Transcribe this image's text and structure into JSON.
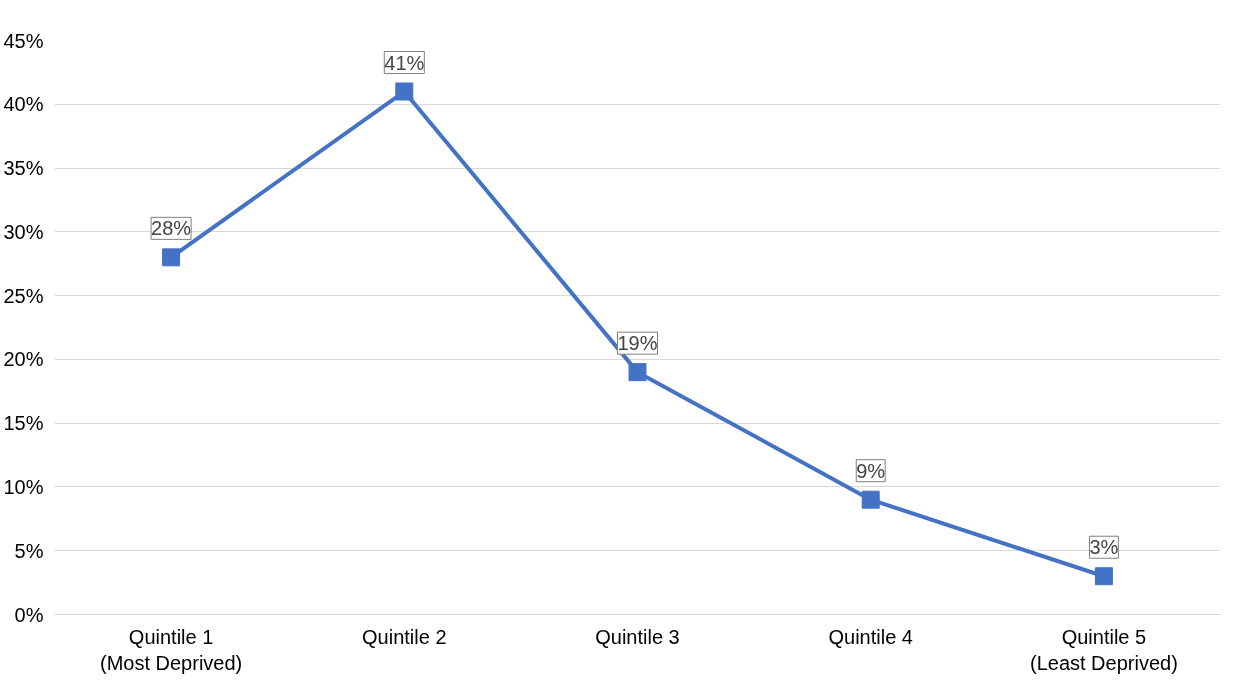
{
  "chart_data": {
    "type": "line",
    "categories": [
      "Quintile 1\n(Most Deprived)",
      "Quintile 2",
      "Quintile 3",
      "Quintile 4",
      "Quintile 5\n(Least Deprived)"
    ],
    "values": [
      28,
      41,
      19,
      9,
      3
    ],
    "value_labels": [
      "28%",
      "41%",
      "19%",
      "9%",
      "3%"
    ],
    "color": "#4472c4",
    "ylim": [
      0,
      45
    ],
    "yticks": [
      {
        "value": 0,
        "label": "0%"
      },
      {
        "value": 5,
        "label": "5%"
      },
      {
        "value": 10,
        "label": "10%"
      },
      {
        "value": 15,
        "label": "15%"
      },
      {
        "value": 20,
        "label": "20%"
      },
      {
        "value": 25,
        "label": "25%"
      },
      {
        "value": 30,
        "label": "30%"
      },
      {
        "value": 35,
        "label": "35%"
      },
      {
        "value": 40,
        "label": "40%"
      },
      {
        "value": 45,
        "label": "45%"
      }
    ],
    "grid": "y",
    "marker": "square",
    "line_style": "solid"
  }
}
